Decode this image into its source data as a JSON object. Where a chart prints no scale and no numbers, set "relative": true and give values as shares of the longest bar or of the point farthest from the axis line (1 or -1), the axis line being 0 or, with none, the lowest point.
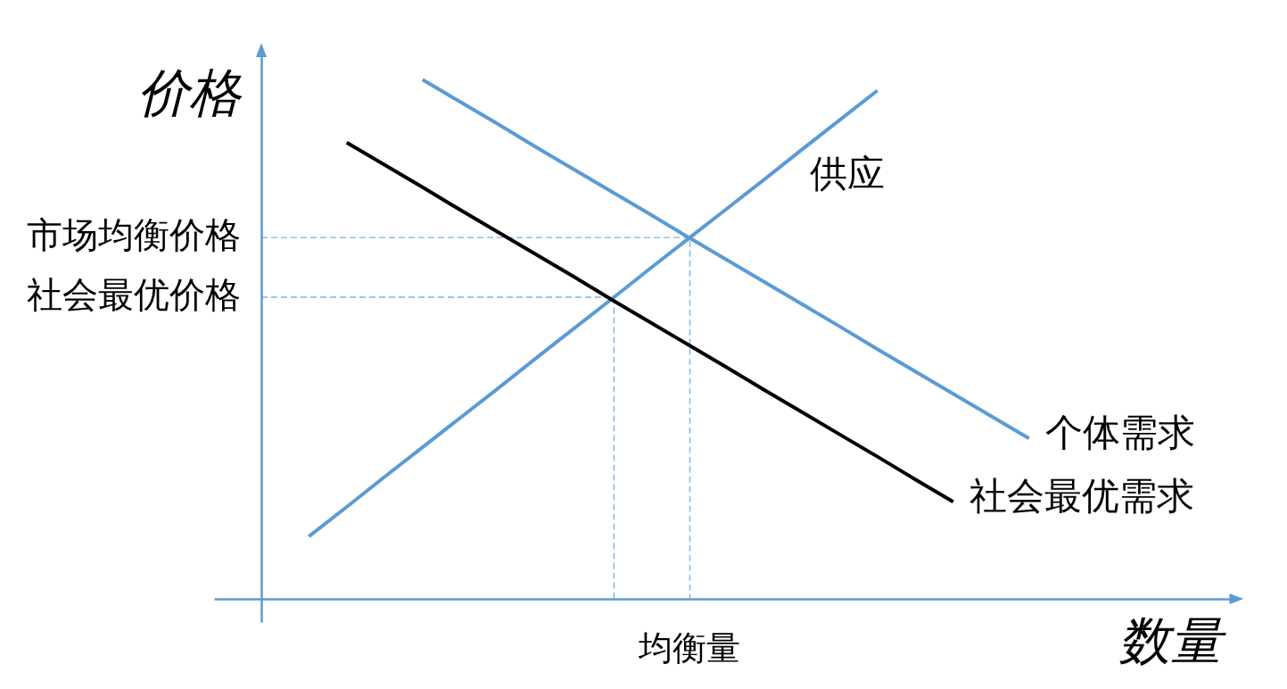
{
  "chart_data": {
    "type": "line",
    "relative": true,
    "xlabel": "数量",
    "ylabel": "价格",
    "categories": [
      null,
      null,
      null,
      null,
      null,
      null,
      null,
      null,
      null,
      null,
      null,
      null,
      null,
      null,
      null,
      null,
      null,
      null,
      null,
      null,
      null,
      null,
      null,
      null,
      null,
      null,
      null
    ],
    "series": [
      {
        "name": "供应",
        "color": "#5b9bd5",
        "values": [
          null,
          null,
          0.12,
          0.177,
          0.235,
          0.292,
          0.349,
          0.406,
          0.464,
          0.521,
          0.578,
          0.636,
          0.693,
          0.75,
          0.807,
          0.865,
          0.922,
          0.979,
          null,
          null,
          null,
          null,
          null,
          null,
          null,
          null,
          null
        ]
      },
      {
        "name": "个体需求",
        "color": "#5b9bd5",
        "values": [
          null,
          null,
          null,
          null,
          null,
          1.0,
          0.957,
          0.914,
          0.87,
          0.827,
          0.784,
          0.741,
          0.697,
          0.654,
          0.611,
          0.568,
          0.525,
          0.481,
          0.438,
          0.395,
          0.352,
          0.309,
          null,
          null,
          null,
          null,
          null
        ]
      },
      {
        "name": "社会最优需求",
        "color": "#000000",
        "values": [
          null,
          null,
          null,
          0.879,
          0.836,
          0.793,
          0.749,
          0.706,
          0.663,
          0.62,
          0.576,
          0.533,
          0.49,
          0.447,
          0.403,
          0.36,
          0.317,
          0.274,
          0.23,
          0.187,
          null,
          null,
          null,
          null,
          null,
          null,
          null
        ]
      }
    ],
    "ref_lines": [
      {
        "axis": "y",
        "value": 0.696,
        "label": "市场均衡价格",
        "color": "#7fb0df",
        "line_style": "dashed"
      },
      {
        "axis": "y",
        "value": 0.581,
        "label": "社会最优价格",
        "color": "#7fb0df",
        "line_style": "dashed"
      }
    ],
    "annotations": [
      "均衡量"
    ]
  }
}
